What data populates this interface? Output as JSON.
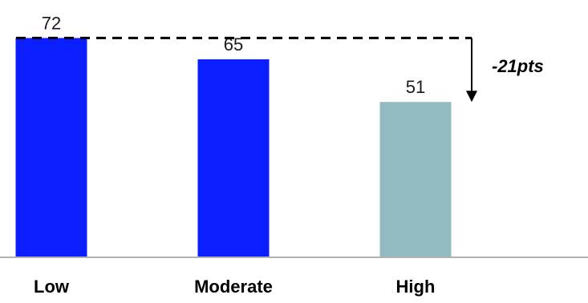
{
  "chart_data": {
    "type": "bar",
    "categories": [
      "Low",
      "Moderate",
      "High"
    ],
    "values": [
      72,
      65,
      51
    ],
    "data_labels": [
      "72",
      "65",
      "51"
    ],
    "bar_colors": [
      "#0a1eff",
      "#0a1eff",
      "#93babf"
    ],
    "title": "",
    "xlabel": "",
    "ylabel": "",
    "ylim": [
      0,
      80
    ],
    "grid": false,
    "legend": "none",
    "annotation": {
      "text": "-21pts",
      "from_category": "Low",
      "to_category": "High",
      "line_style": "dashed"
    }
  },
  "colors": {
    "primary_bar": "#0a1eff",
    "highlight_bar": "#93babf",
    "axis": "#b3b3b3",
    "annotation": "#000000"
  }
}
